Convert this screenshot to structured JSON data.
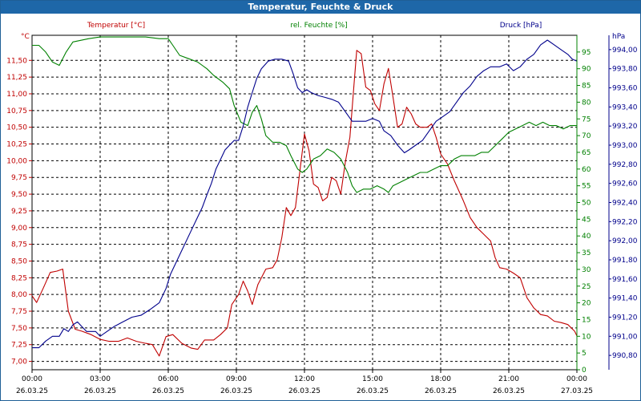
{
  "window": {
    "title": "Temperatur, Feuchte & Druck"
  },
  "chart_data": {
    "type": "line",
    "title": "Temperatur, Feuchte & Druck",
    "grid": true,
    "x": {
      "range": [
        "26.03.25 00:00",
        "27.03.25 00:00"
      ],
      "tick_labels": [
        {
          "time": "00:00",
          "date": "26.03.25"
        },
        {
          "time": "03:00",
          "date": "26.03.25"
        },
        {
          "time": "06:00",
          "date": "26.03.25"
        },
        {
          "time": "09:00",
          "date": "26.03.25"
        },
        {
          "time": "12:00",
          "date": "26.03.25"
        },
        {
          "time": "15:00",
          "date": "26.03.25"
        },
        {
          "time": "18:00",
          "date": "26.03.25"
        },
        {
          "time": "21:00",
          "date": "26.03.25"
        },
        {
          "time": "00:00",
          "date": "27.03.25"
        }
      ]
    },
    "axes": {
      "temperature": {
        "label": "Temperatur [°C]",
        "unit": "°C",
        "color": "#c00000",
        "side": "left",
        "ylim": [
          6.875,
          11.875
        ],
        "ticks": [
          "7,00",
          "7,25",
          "7,50",
          "7,75",
          "8,00",
          "8,25",
          "8,50",
          "8,75",
          "9,00",
          "9,25",
          "9,50",
          "9,75",
          "10,00",
          "10,25",
          "10,50",
          "10,75",
          "11,00",
          "11,25",
          "11,50"
        ]
      },
      "humidity": {
        "label": "rel. Feuchte [%]",
        "unit": "%",
        "color": "#008000",
        "side": "right-inner",
        "ylim": [
          0,
          100
        ],
        "ticks": [
          "0",
          "5",
          "10",
          "15",
          "20",
          "25",
          "30",
          "35",
          "40",
          "45",
          "50",
          "55",
          "60",
          "65",
          "70",
          "75",
          "80",
          "85",
          "90",
          "95"
        ]
      },
      "pressure": {
        "label": "Druck [hPa]",
        "unit": "hPa",
        "color": "#00008b",
        "side": "right-outer",
        "ylim": [
          990.65,
          994.15
        ],
        "ticks": [
          "990,80",
          "991,00",
          "991,20",
          "991,40",
          "991,60",
          "991,80",
          "992,00",
          "992,20",
          "992,40",
          "992,60",
          "992,80",
          "993,00",
          "993,20",
          "993,40",
          "993,60",
          "993,80",
          "994,00"
        ]
      }
    },
    "series": [
      {
        "name": "Temperatur [°C]",
        "axis": "temperature",
        "color": "#c00000",
        "points": [
          [
            0,
            7.98
          ],
          [
            0.2,
            7.88
          ],
          [
            0.5,
            8.1
          ],
          [
            0.8,
            8.33
          ],
          [
            1.1,
            8.35
          ],
          [
            1.35,
            8.38
          ],
          [
            1.6,
            7.75
          ],
          [
            1.9,
            7.48
          ],
          [
            2.2,
            7.45
          ],
          [
            2.6,
            7.4
          ],
          [
            3.0,
            7.33
          ],
          [
            3.4,
            7.3
          ],
          [
            3.8,
            7.3
          ],
          [
            4.2,
            7.35
          ],
          [
            4.6,
            7.3
          ],
          [
            5.0,
            7.27
          ],
          [
            5.3,
            7.25
          ],
          [
            5.6,
            7.08
          ],
          [
            5.9,
            7.37
          ],
          [
            6.2,
            7.4
          ],
          [
            6.6,
            7.27
          ],
          [
            7.0,
            7.2
          ],
          [
            7.3,
            7.18
          ],
          [
            7.6,
            7.32
          ],
          [
            8.0,
            7.32
          ],
          [
            8.3,
            7.4
          ],
          [
            8.6,
            7.5
          ],
          [
            8.8,
            7.85
          ],
          [
            9.1,
            8.0
          ],
          [
            9.3,
            8.2
          ],
          [
            9.5,
            8.05
          ],
          [
            9.7,
            7.85
          ],
          [
            9.95,
            8.15
          ],
          [
            10.3,
            8.38
          ],
          [
            10.6,
            8.4
          ],
          [
            10.8,
            8.52
          ],
          [
            11.0,
            8.85
          ],
          [
            11.2,
            9.3
          ],
          [
            11.4,
            9.18
          ],
          [
            11.6,
            9.3
          ],
          [
            11.8,
            9.85
          ],
          [
            12.0,
            10.4
          ],
          [
            12.2,
            10.15
          ],
          [
            12.4,
            9.65
          ],
          [
            12.6,
            9.6
          ],
          [
            12.8,
            9.4
          ],
          [
            13.0,
            9.45
          ],
          [
            13.2,
            9.75
          ],
          [
            13.4,
            9.7
          ],
          [
            13.6,
            9.5
          ],
          [
            13.8,
            9.98
          ],
          [
            14.0,
            10.35
          ],
          [
            14.15,
            11.0
          ],
          [
            14.3,
            11.65
          ],
          [
            14.5,
            11.6
          ],
          [
            14.7,
            11.1
          ],
          [
            14.9,
            11.05
          ],
          [
            15.1,
            10.85
          ],
          [
            15.3,
            10.75
          ],
          [
            15.5,
            11.15
          ],
          [
            15.7,
            11.38
          ],
          [
            15.9,
            10.95
          ],
          [
            16.1,
            10.5
          ],
          [
            16.3,
            10.55
          ],
          [
            16.5,
            10.8
          ],
          [
            16.7,
            10.7
          ],
          [
            16.9,
            10.55
          ],
          [
            17.1,
            10.5
          ],
          [
            17.4,
            10.5
          ],
          [
            17.6,
            10.55
          ],
          [
            17.8,
            10.35
          ],
          [
            18.0,
            10.1
          ],
          [
            18.3,
            9.95
          ],
          [
            18.6,
            9.7
          ],
          [
            19.0,
            9.4
          ],
          [
            19.3,
            9.15
          ],
          [
            19.6,
            9.0
          ],
          [
            19.9,
            8.9
          ],
          [
            20.2,
            8.8
          ],
          [
            20.4,
            8.55
          ],
          [
            20.6,
            8.4
          ],
          [
            20.9,
            8.38
          ],
          [
            21.2,
            8.32
          ],
          [
            21.5,
            8.25
          ],
          [
            21.8,
            7.95
          ],
          [
            22.1,
            7.8
          ],
          [
            22.4,
            7.7
          ],
          [
            22.7,
            7.68
          ],
          [
            23.0,
            7.6
          ],
          [
            23.3,
            7.58
          ],
          [
            23.6,
            7.55
          ],
          [
            23.9,
            7.45
          ],
          [
            24.0,
            7.38
          ]
        ]
      },
      {
        "name": "rel. Feuchte [%]",
        "axis": "humidity",
        "color": "#008000",
        "points": [
          [
            0,
            97
          ],
          [
            0.3,
            97
          ],
          [
            0.6,
            95
          ],
          [
            0.9,
            92
          ],
          [
            1.2,
            91
          ],
          [
            1.5,
            95
          ],
          [
            1.8,
            98
          ],
          [
            2.5,
            99
          ],
          [
            3.0,
            99.5
          ],
          [
            4.0,
            99.5
          ],
          [
            5.0,
            99.5
          ],
          [
            5.6,
            99
          ],
          [
            6.0,
            99
          ],
          [
            6.2,
            97
          ],
          [
            6.5,
            94
          ],
          [
            6.9,
            93
          ],
          [
            7.3,
            92
          ],
          [
            7.7,
            90
          ],
          [
            8.0,
            88
          ],
          [
            8.4,
            86
          ],
          [
            8.7,
            84
          ],
          [
            8.9,
            79
          ],
          [
            9.2,
            74
          ],
          [
            9.5,
            73
          ],
          [
            9.7,
            77
          ],
          [
            9.9,
            79
          ],
          [
            10.1,
            75
          ],
          [
            10.3,
            70
          ],
          [
            10.6,
            68
          ],
          [
            10.9,
            68
          ],
          [
            11.2,
            67
          ],
          [
            11.4,
            64
          ],
          [
            11.7,
            60
          ],
          [
            11.9,
            59
          ],
          [
            12.1,
            60
          ],
          [
            12.4,
            63
          ],
          [
            12.7,
            64
          ],
          [
            13.0,
            66
          ],
          [
            13.3,
            65
          ],
          [
            13.6,
            63
          ],
          [
            13.9,
            59
          ],
          [
            14.1,
            55
          ],
          [
            14.3,
            53
          ],
          [
            14.6,
            54
          ],
          [
            14.9,
            54
          ],
          [
            15.2,
            55
          ],
          [
            15.5,
            54
          ],
          [
            15.7,
            53
          ],
          [
            15.9,
            55
          ],
          [
            16.2,
            56
          ],
          [
            16.5,
            57
          ],
          [
            16.8,
            58
          ],
          [
            17.1,
            59
          ],
          [
            17.4,
            59
          ],
          [
            17.7,
            60
          ],
          [
            18.0,
            61
          ],
          [
            18.3,
            61
          ],
          [
            18.6,
            63
          ],
          [
            18.9,
            64
          ],
          [
            19.2,
            64
          ],
          [
            19.5,
            64
          ],
          [
            19.8,
            65
          ],
          [
            20.1,
            65
          ],
          [
            20.4,
            67
          ],
          [
            20.7,
            69
          ],
          [
            21.0,
            71
          ],
          [
            21.3,
            72
          ],
          [
            21.6,
            73
          ],
          [
            21.9,
            74
          ],
          [
            22.2,
            73
          ],
          [
            22.5,
            74
          ],
          [
            22.8,
            73
          ],
          [
            23.1,
            73
          ],
          [
            23.4,
            72
          ],
          [
            23.7,
            73
          ],
          [
            24.0,
            73
          ]
        ]
      },
      {
        "name": "Druck [hPa]",
        "axis": "pressure",
        "color": "#00008b",
        "points": [
          [
            0,
            990.88
          ],
          [
            0.3,
            990.88
          ],
          [
            0.6,
            990.95
          ],
          [
            0.9,
            991.0
          ],
          [
            1.2,
            991.0
          ],
          [
            1.4,
            991.08
          ],
          [
            1.6,
            991.05
          ],
          [
            1.8,
            991.12
          ],
          [
            2.0,
            991.15
          ],
          [
            2.2,
            991.1
          ],
          [
            2.4,
            991.05
          ],
          [
            2.6,
            991.05
          ],
          [
            2.8,
            991.05
          ],
          [
            3.0,
            991.0
          ],
          [
            3.3,
            991.05
          ],
          [
            3.6,
            991.1
          ],
          [
            4.0,
            991.15
          ],
          [
            4.4,
            991.2
          ],
          [
            4.8,
            991.22
          ],
          [
            5.2,
            991.28
          ],
          [
            5.6,
            991.35
          ],
          [
            5.9,
            991.5
          ],
          [
            6.1,
            991.65
          ],
          [
            6.4,
            991.8
          ],
          [
            6.7,
            991.95
          ],
          [
            7.0,
            992.1
          ],
          [
            7.3,
            992.25
          ],
          [
            7.5,
            992.35
          ],
          [
            7.7,
            992.48
          ],
          [
            7.9,
            992.6
          ],
          [
            8.1,
            992.75
          ],
          [
            8.3,
            992.85
          ],
          [
            8.5,
            992.95
          ],
          [
            8.7,
            993.0
          ],
          [
            8.9,
            993.05
          ],
          [
            9.1,
            993.05
          ],
          [
            9.3,
            993.2
          ],
          [
            9.5,
            993.4
          ],
          [
            9.7,
            993.55
          ],
          [
            9.9,
            993.7
          ],
          [
            10.1,
            993.8
          ],
          [
            10.4,
            993.88
          ],
          [
            10.7,
            993.9
          ],
          [
            11.0,
            993.9
          ],
          [
            11.3,
            993.88
          ],
          [
            11.5,
            993.75
          ],
          [
            11.7,
            993.6
          ],
          [
            11.9,
            993.55
          ],
          [
            12.1,
            993.58
          ],
          [
            12.3,
            993.55
          ],
          [
            12.6,
            993.52
          ],
          [
            12.9,
            993.5
          ],
          [
            13.2,
            993.48
          ],
          [
            13.5,
            993.45
          ],
          [
            13.8,
            993.35
          ],
          [
            14.1,
            993.25
          ],
          [
            14.4,
            993.25
          ],
          [
            14.7,
            993.25
          ],
          [
            15.0,
            993.28
          ],
          [
            15.3,
            993.25
          ],
          [
            15.5,
            993.15
          ],
          [
            15.8,
            993.1
          ],
          [
            16.1,
            993.0
          ],
          [
            16.4,
            992.92
          ],
          [
            16.6,
            992.95
          ],
          [
            16.9,
            993.0
          ],
          [
            17.2,
            993.05
          ],
          [
            17.5,
            993.15
          ],
          [
            17.8,
            993.25
          ],
          [
            18.1,
            993.3
          ],
          [
            18.4,
            993.35
          ],
          [
            18.7,
            993.45
          ],
          [
            19.0,
            993.55
          ],
          [
            19.3,
            993.62
          ],
          [
            19.6,
            993.72
          ],
          [
            19.9,
            993.78
          ],
          [
            20.2,
            993.82
          ],
          [
            20.6,
            993.82
          ],
          [
            20.9,
            993.85
          ],
          [
            21.2,
            993.78
          ],
          [
            21.5,
            993.82
          ],
          [
            21.8,
            993.9
          ],
          [
            22.1,
            993.95
          ],
          [
            22.4,
            994.05
          ],
          [
            22.7,
            994.1
          ],
          [
            23.0,
            994.05
          ],
          [
            23.3,
            994.0
          ],
          [
            23.6,
            993.95
          ],
          [
            23.8,
            993.9
          ],
          [
            24.0,
            993.88
          ]
        ]
      }
    ]
  }
}
